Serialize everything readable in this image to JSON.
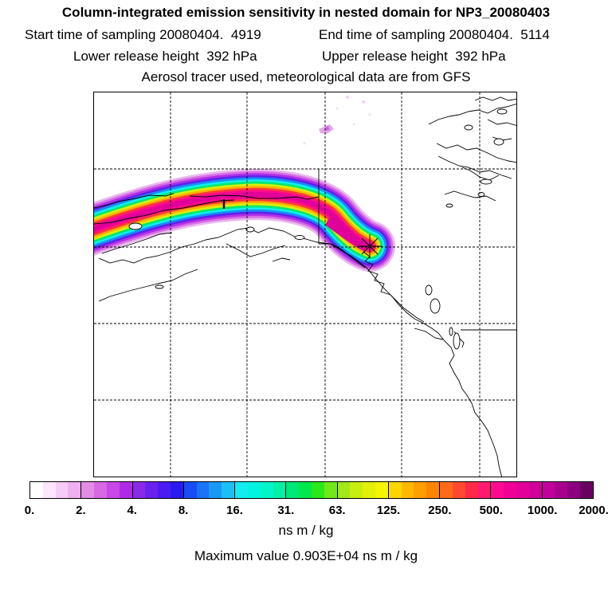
{
  "title": "Column-integrated emission sensitivity in nested domain for NP3_20080403",
  "header": {
    "start_label": "Start time of sampling 20080404.  4919",
    "end_label": "End time of sampling 20080404.  5114",
    "lower_label": "Lower release height  392 hPa",
    "upper_label": "Upper release height  392 hPa",
    "tracer_note": "Aerosol tracer used, meteorological data are from GFS"
  },
  "colorbar": {
    "ticks": [
      "0.",
      "2.",
      "4.",
      "8.",
      "16.",
      "31.",
      "63.",
      "125.",
      "250.",
      "500.",
      "1000.",
      "2000."
    ],
    "bands": [
      [
        "#ffffff",
        "#fbe6fb",
        "#f5ccf5",
        "#eeb0ee"
      ],
      [
        "#e38ce6",
        "#d868e3",
        "#c848e6",
        "#b02ae6"
      ],
      [
        "#8a2ae8",
        "#6a22ee",
        "#4a1cf2",
        "#2a1af0"
      ],
      [
        "#1a4cf5",
        "#1a74f5",
        "#1a98f5",
        "#1abff5"
      ],
      [
        "#10eef0",
        "#00f5e0",
        "#00f5c8",
        "#00f0a8"
      ],
      [
        "#00e878",
        "#00e84c",
        "#2ae81a",
        "#70e81a"
      ],
      [
        "#a2e81a",
        "#c8ee10",
        "#e2f00a",
        "#f5f500"
      ],
      [
        "#ffd500",
        "#ffb800",
        "#ff9e00",
        "#ff8400"
      ],
      [
        "#ff6a1a",
        "#ff4a30",
        "#ff2a4a",
        "#ff1a70"
      ],
      [
        "#ff0a90",
        "#f00095",
        "#e20098",
        "#d2009a"
      ],
      [
        "#c2009c",
        "#a8008e",
        "#8c0080",
        "#6a0060"
      ]
    ],
    "unit": "ns m / kg",
    "max_value": "Maximum value  0.903E+04 ns m / kg"
  },
  "map": {
    "plume_colors": [
      "#e9b8ee",
      "#d96ee6",
      "#b030e6",
      "#5e22ee",
      "#1a8cf5",
      "#10eef0",
      "#00e870",
      "#d8f00a",
      "#ffb000",
      "#ff3a3a",
      "#ff0a8e",
      "#e0009a"
    ],
    "receptor": "release-point-star"
  }
}
